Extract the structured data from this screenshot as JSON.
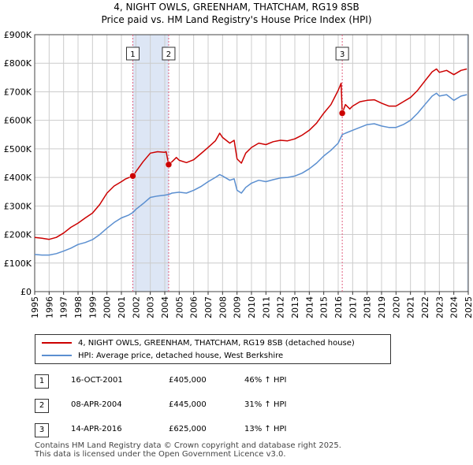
{
  "title_line1": "4, NIGHT OWLS, GREENHAM, THATCHAM, RG19 8SB",
  "title_line2": "Price paid vs. HM Land Registry's House Price Index (HPI)",
  "colors": {
    "property": "#cc0000",
    "hpi": "#5b8fd0",
    "marker_line": "#e06080",
    "shade": "#dde6f5"
  },
  "chart_data": {
    "type": "line",
    "title": "4, NIGHT OWLS, GREENHAM, THATCHAM, RG19 8SB",
    "subtitle": "Price paid vs. HM Land Registry's House Price Index (HPI)",
    "xlabel": "",
    "ylabel": "",
    "xlim": [
      1995,
      2025
    ],
    "ylim": [
      0,
      900000
    ],
    "y_ticks": [
      {
        "value": 0,
        "label": "£0"
      },
      {
        "value": 100000,
        "label": "£100K"
      },
      {
        "value": 200000,
        "label": "£200K"
      },
      {
        "value": 300000,
        "label": "£300K"
      },
      {
        "value": 400000,
        "label": "£400K"
      },
      {
        "value": 500000,
        "label": "£500K"
      },
      {
        "value": 600000,
        "label": "£600K"
      },
      {
        "value": 700000,
        "label": "£700K"
      },
      {
        "value": 800000,
        "label": "£800K"
      },
      {
        "value": 900000,
        "label": "£900K"
      }
    ],
    "x_ticks": [
      "1995",
      "1996",
      "1997",
      "1998",
      "1999",
      "2000",
      "2001",
      "2002",
      "2003",
      "2004",
      "2005",
      "2006",
      "2007",
      "2008",
      "2009",
      "2010",
      "2011",
      "2012",
      "2013",
      "2014",
      "2015",
      "2016",
      "2017",
      "2018",
      "2019",
      "2020",
      "2021",
      "2022",
      "2023",
      "2024",
      "2025"
    ],
    "grid": true,
    "series": [
      {
        "name": "4, NIGHT OWLS, GREENHAM, THATCHAM, RG19 8SB (detached house)",
        "color": "#cc0000",
        "points": [
          [
            1995.0,
            190000
          ],
          [
            1995.5,
            187000
          ],
          [
            1996.0,
            183000
          ],
          [
            1996.5,
            190000
          ],
          [
            1997.0,
            205000
          ],
          [
            1997.5,
            225000
          ],
          [
            1998.0,
            240000
          ],
          [
            1998.5,
            258000
          ],
          [
            1999.0,
            275000
          ],
          [
            1999.5,
            305000
          ],
          [
            2000.0,
            345000
          ],
          [
            2000.5,
            370000
          ],
          [
            2001.0,
            385000
          ],
          [
            2001.3,
            395000
          ],
          [
            2001.79,
            405000
          ],
          [
            2002.0,
            420000
          ],
          [
            2002.5,
            455000
          ],
          [
            2003.0,
            485000
          ],
          [
            2003.5,
            490000
          ],
          [
            2004.0,
            488000
          ],
          [
            2004.1,
            490000
          ],
          [
            2004.27,
            445000
          ],
          [
            2004.5,
            455000
          ],
          [
            2004.8,
            470000
          ],
          [
            2005.0,
            460000
          ],
          [
            2005.5,
            452000
          ],
          [
            2006.0,
            462000
          ],
          [
            2006.5,
            483000
          ],
          [
            2007.0,
            505000
          ],
          [
            2007.5,
            528000
          ],
          [
            2007.8,
            555000
          ],
          [
            2008.0,
            540000
          ],
          [
            2008.5,
            520000
          ],
          [
            2008.8,
            530000
          ],
          [
            2009.0,
            465000
          ],
          [
            2009.3,
            450000
          ],
          [
            2009.6,
            485000
          ],
          [
            2010.0,
            505000
          ],
          [
            2010.5,
            520000
          ],
          [
            2011.0,
            515000
          ],
          [
            2011.5,
            525000
          ],
          [
            2012.0,
            530000
          ],
          [
            2012.5,
            528000
          ],
          [
            2013.0,
            535000
          ],
          [
            2013.5,
            548000
          ],
          [
            2014.0,
            565000
          ],
          [
            2014.5,
            590000
          ],
          [
            2015.0,
            625000
          ],
          [
            2015.5,
            655000
          ],
          [
            2016.0,
            705000
          ],
          [
            2016.2,
            730000
          ],
          [
            2016.28,
            625000
          ],
          [
            2016.5,
            655000
          ],
          [
            2016.8,
            640000
          ],
          [
            2017.0,
            650000
          ],
          [
            2017.5,
            665000
          ],
          [
            2018.0,
            670000
          ],
          [
            2018.5,
            672000
          ],
          [
            2019.0,
            660000
          ],
          [
            2019.5,
            650000
          ],
          [
            2020.0,
            650000
          ],
          [
            2020.5,
            665000
          ],
          [
            2021.0,
            680000
          ],
          [
            2021.5,
            705000
          ],
          [
            2022.0,
            738000
          ],
          [
            2022.5,
            770000
          ],
          [
            2022.8,
            780000
          ],
          [
            2023.0,
            768000
          ],
          [
            2023.5,
            775000
          ],
          [
            2024.0,
            760000
          ],
          [
            2024.5,
            775000
          ],
          [
            2024.9,
            780000
          ]
        ]
      },
      {
        "name": "HPI: Average price, detached house, West Berkshire",
        "color": "#5b8fd0",
        "points": [
          [
            1995.0,
            130000
          ],
          [
            1995.5,
            128000
          ],
          [
            1996.0,
            128000
          ],
          [
            1996.5,
            133000
          ],
          [
            1997.0,
            142000
          ],
          [
            1997.5,
            152000
          ],
          [
            1998.0,
            165000
          ],
          [
            1998.5,
            172000
          ],
          [
            1999.0,
            182000
          ],
          [
            1999.5,
            200000
          ],
          [
            2000.0,
            222000
          ],
          [
            2000.5,
            242000
          ],
          [
            2001.0,
            258000
          ],
          [
            2001.5,
            268000
          ],
          [
            2001.79,
            277000
          ],
          [
            2002.0,
            288000
          ],
          [
            2002.5,
            308000
          ],
          [
            2003.0,
            330000
          ],
          [
            2003.5,
            335000
          ],
          [
            2004.0,
            338000
          ],
          [
            2004.27,
            340000
          ],
          [
            2004.5,
            345000
          ],
          [
            2005.0,
            348000
          ],
          [
            2005.5,
            345000
          ],
          [
            2006.0,
            355000
          ],
          [
            2006.5,
            368000
          ],
          [
            2007.0,
            385000
          ],
          [
            2007.5,
            400000
          ],
          [
            2007.8,
            410000
          ],
          [
            2008.0,
            405000
          ],
          [
            2008.5,
            390000
          ],
          [
            2008.8,
            395000
          ],
          [
            2009.0,
            355000
          ],
          [
            2009.3,
            345000
          ],
          [
            2009.6,
            365000
          ],
          [
            2010.0,
            380000
          ],
          [
            2010.5,
            390000
          ],
          [
            2011.0,
            385000
          ],
          [
            2011.5,
            392000
          ],
          [
            2012.0,
            398000
          ],
          [
            2012.5,
            400000
          ],
          [
            2013.0,
            405000
          ],
          [
            2013.5,
            415000
          ],
          [
            2014.0,
            430000
          ],
          [
            2014.5,
            450000
          ],
          [
            2015.0,
            475000
          ],
          [
            2015.5,
            495000
          ],
          [
            2016.0,
            520000
          ],
          [
            2016.28,
            550000
          ],
          [
            2016.5,
            555000
          ],
          [
            2017.0,
            565000
          ],
          [
            2017.5,
            575000
          ],
          [
            2018.0,
            585000
          ],
          [
            2018.5,
            588000
          ],
          [
            2019.0,
            580000
          ],
          [
            2019.5,
            575000
          ],
          [
            2020.0,
            575000
          ],
          [
            2020.5,
            585000
          ],
          [
            2021.0,
            600000
          ],
          [
            2021.5,
            625000
          ],
          [
            2022.0,
            655000
          ],
          [
            2022.5,
            685000
          ],
          [
            2022.8,
            695000
          ],
          [
            2023.0,
            685000
          ],
          [
            2023.5,
            690000
          ],
          [
            2024.0,
            670000
          ],
          [
            2024.5,
            685000
          ],
          [
            2024.9,
            690000
          ]
        ]
      }
    ],
    "sale_markers": [
      {
        "label": "1",
        "x": 2001.79,
        "y": 405000
      },
      {
        "label": "2",
        "x": 2004.27,
        "y": 445000
      },
      {
        "label": "3",
        "x": 2016.28,
        "y": 625000
      }
    ],
    "shaded_ranges": [
      [
        2001.79,
        2004.27
      ],
      [
        2024.9,
        2025.0
      ]
    ]
  },
  "legend": {
    "property_label": "4, NIGHT OWLS, GREENHAM, THATCHAM, RG19 8SB (detached house)",
    "hpi_label": "HPI: Average price, detached house, West Berkshire"
  },
  "sales": [
    {
      "num": "1",
      "date": "16-OCT-2001",
      "price": "£405,000",
      "hpi": "46% ↑ HPI"
    },
    {
      "num": "2",
      "date": "08-APR-2004",
      "price": "£445,000",
      "hpi": "31% ↑ HPI"
    },
    {
      "num": "3",
      "date": "14-APR-2016",
      "price": "£625,000",
      "hpi": "13% ↑ HPI"
    }
  ],
  "footer": {
    "line1": "Contains HM Land Registry data © Crown copyright and database right 2025.",
    "line2": "This data is licensed under the Open Government Licence v3.0."
  }
}
